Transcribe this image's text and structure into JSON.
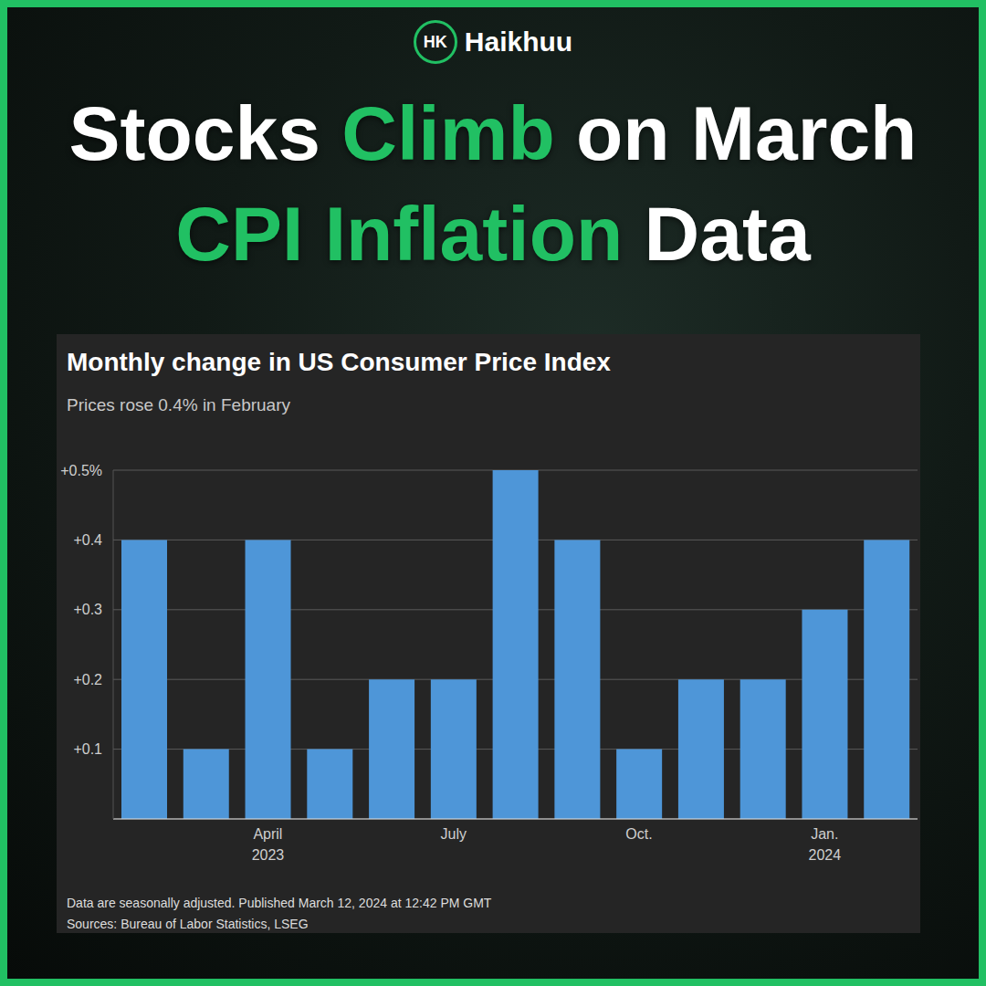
{
  "header": {
    "logo_mark": "HK",
    "logo_text": "Haikhuu",
    "headline": [
      [
        {
          "text": "Stocks",
          "highlight": false
        },
        {
          "text": "Climb",
          "highlight": true
        },
        {
          "text": "on March",
          "highlight": false
        }
      ],
      [
        {
          "text": "CPI Inflation",
          "highlight": true
        },
        {
          "text": "Data",
          "highlight": false
        }
      ]
    ]
  },
  "chart_data": {
    "type": "bar",
    "title": "Monthly change in US Consumer Price Index",
    "subtitle": "Prices rose 0.4% in February",
    "categories": [
      null,
      null,
      "April 2023",
      null,
      null,
      "July",
      null,
      null,
      "Oct.",
      null,
      null,
      "Jan. 2024",
      null
    ],
    "values": [
      0.4,
      0.1,
      0.4,
      0.1,
      0.2,
      0.2,
      0.5,
      0.4,
      0.1,
      0.2,
      0.2,
      0.3,
      0.4
    ],
    "color": "#4e96d8",
    "ylim": [
      0,
      0.5
    ],
    "yticks": [
      {
        "value": 0.1,
        "label": "+0.1"
      },
      {
        "value": 0.2,
        "label": "+0.2"
      },
      {
        "value": 0.3,
        "label": "+0.3"
      },
      {
        "value": 0.4,
        "label": "+0.4"
      },
      {
        "value": 0.5,
        "label": "+0.5%"
      }
    ],
    "grid": true,
    "notes": [
      "Data are seasonally adjusted. Published March 12, 2024 at 12:42 PM GMT",
      "Sources: Bureau of Labor Statistics, LSEG"
    ]
  }
}
